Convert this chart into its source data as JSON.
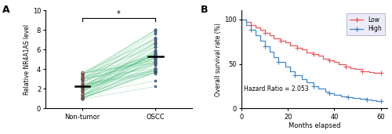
{
  "panel_a": {
    "title_label": "A",
    "ylabel": "Relative NR4A1AS level",
    "xtick_labels": [
      "Non-tumor",
      "OSCC"
    ],
    "ylim": [
      0,
      10
    ],
    "yticks": [
      0,
      2,
      4,
      6,
      8,
      10
    ],
    "non_tumor_color": "#E8888A",
    "oscc_color": "#5577CC",
    "line_color": "#44BB77",
    "star_text": "*"
  },
  "panel_b": {
    "title_label": "B",
    "xlabel": "Months elapsed",
    "ylabel": "Overall survival rate (%)",
    "ylim": [
      0,
      105
    ],
    "xlim": [
      0,
      63
    ],
    "yticks": [
      0,
      50,
      100
    ],
    "xticks": [
      0,
      20,
      40,
      60
    ],
    "hazard_ratio_text": "Hazard Ratio = 2.053",
    "low_color": "#EE5555",
    "high_color": "#4488CC",
    "low_times": [
      0,
      2,
      4,
      6,
      8,
      10,
      12,
      14,
      17,
      19,
      21,
      24,
      26,
      28,
      31,
      33,
      35,
      38,
      40,
      42,
      45,
      47,
      49,
      52,
      55,
      57,
      60
    ],
    "low_surv": [
      100,
      97,
      94,
      91,
      88,
      85,
      82,
      79,
      76,
      74,
      71,
      68,
      66,
      63,
      61,
      59,
      56,
      54,
      52,
      50,
      47,
      45,
      44,
      42,
      41,
      40,
      40
    ],
    "high_times": [
      0,
      2,
      4,
      6,
      8,
      10,
      12,
      14,
      16,
      19,
      21,
      23,
      26,
      28,
      31,
      33,
      36,
      38,
      40,
      43,
      46,
      48,
      51,
      54,
      56,
      58,
      60
    ],
    "high_surv": [
      100,
      94,
      88,
      82,
      76,
      70,
      64,
      58,
      52,
      47,
      42,
      37,
      33,
      29,
      25,
      22,
      19,
      17,
      15,
      14,
      13,
      12,
      11,
      10,
      9,
      8,
      8
    ]
  }
}
